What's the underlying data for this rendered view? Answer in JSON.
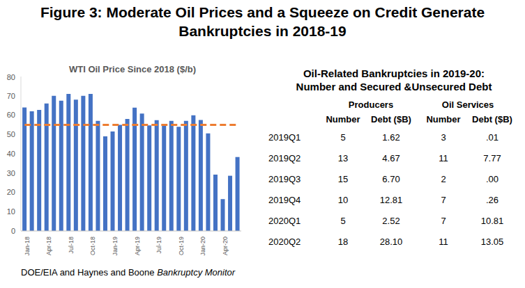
{
  "title": [
    "Figure 3: Moderate Oil Prices and a Squeeze on Credit Generate",
    "Bankruptcies in 2018-19"
  ],
  "chart_data": {
    "type": "bar",
    "title": "WTI Oil Price Since 2018 ($/b)",
    "categories": [
      "Jan-18",
      null,
      null,
      "Apr-18",
      null,
      null,
      "Jul-18",
      null,
      null,
      "Oct-18",
      null,
      null,
      "Jan-19",
      null,
      null,
      "Apr-19",
      null,
      null,
      "Jul-19",
      null,
      null,
      "Oct-19",
      null,
      null,
      "Jan-20",
      null,
      null,
      "Apr-20",
      null,
      null
    ],
    "series": [
      {
        "type": "bar",
        "color": "#4472C4",
        "values": [
          64,
          62,
          62.7,
          66,
          70,
          67.5,
          71,
          68,
          70,
          71,
          57,
          49,
          51.5,
          55,
          58,
          63.9,
          60.8,
          54.7,
          57.4,
          54.8,
          57,
          54,
          57,
          59.9,
          57.5,
          50.5,
          29.2,
          16.5,
          28.6,
          38.3
        ]
      },
      {
        "type": "line",
        "color": "#ED7D31",
        "line_style": "dashed",
        "values": [
          55,
          55,
          55,
          55,
          55,
          55,
          55,
          55,
          55,
          55,
          55,
          55,
          55,
          55,
          55,
          55,
          55,
          55,
          55,
          55,
          55,
          55,
          55,
          55,
          55,
          55,
          55,
          55,
          55,
          55
        ]
      }
    ],
    "ylim": [
      0,
      80
    ],
    "yticks": [
      0,
      10,
      20,
      30,
      40,
      50,
      60,
      70,
      80
    ],
    "grid": false
  },
  "table": {
    "title": [
      "Oil-Related Bankruptcies in 2019-20:",
      "Number and Secured &Unsecured Debt"
    ],
    "groups": [
      "Producers",
      "Oil Services"
    ],
    "columns": [
      "Number",
      "Debt ($B)",
      "Number",
      "Debt ($B)"
    ],
    "rows": [
      [
        "2019Q1",
        "5",
        "1.62",
        "3",
        ".01"
      ],
      [
        "2019Q2",
        "13",
        "4.67",
        "11",
        "7.77"
      ],
      [
        "2019Q3",
        "15",
        "6.70",
        "2",
        ".00"
      ],
      [
        "2019Q4",
        "10",
        "12.81",
        "7",
        ".26"
      ],
      [
        "2020Q1",
        "5",
        "2.52",
        "7",
        "10.81"
      ],
      [
        "2020Q2",
        "18",
        "28.10",
        "11",
        "13.05"
      ]
    ]
  },
  "source": {
    "text": "DOE/EIA and Haynes and Boone",
    "italic": "Bankruptcy Monitor"
  }
}
